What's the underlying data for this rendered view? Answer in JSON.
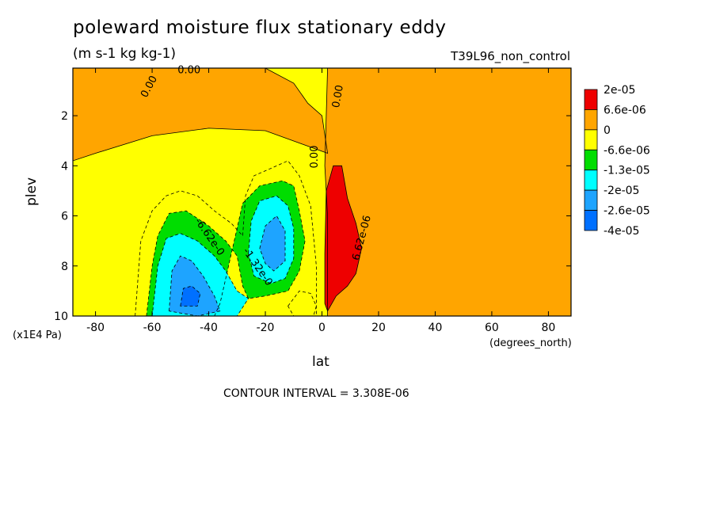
{
  "chart_data": {
    "type": "heatmap",
    "title": "poleward moisture flux stationary eddy",
    "subtitle": "(m s-1 kg kg-1)",
    "run_label": "T39L96_non_control",
    "xlabel": "lat",
    "xunit": "(degrees_north)",
    "ylabel": "plev",
    "yunit": "(x1E4 Pa)",
    "xlim": [
      -88,
      88
    ],
    "ylim": [
      10,
      0.1
    ],
    "x_ticks": [
      -80,
      -60,
      -40,
      -20,
      0,
      20,
      40,
      60,
      80
    ],
    "y_ticks": [
      2,
      4,
      6,
      8,
      10
    ],
    "contour_interval_text": "CONTOUR INTERVAL = 3.308E-06",
    "colorbar": {
      "labels": [
        "2e-05",
        "6.6e-06",
        "0",
        "-6.6e-06",
        "-1.3e-05",
        "-2e-05",
        "-2.6e-05",
        "-4e-05"
      ],
      "colors": [
        "#ee0000",
        "#ffa500",
        "#ffff00",
        "#00dd00",
        "#00ffff",
        "#1ea4ff",
        "#0070ff"
      ]
    },
    "contour_labels": [
      "0.00",
      "0.00",
      "0.00",
      "0.00",
      "-6.62e-0",
      "-1.32e-0",
      "6.62e-06"
    ],
    "regions": [
      {
        "name": "positive-nh-troposphere",
        "level": 0,
        "polygon": [
          [
            2,
            0.1
          ],
          [
            88,
            0.1
          ],
          [
            88,
            10
          ],
          [
            2,
            10
          ],
          [
            2,
            6
          ],
          [
            1,
            4
          ]
        ]
      },
      {
        "name": "positive-sh-stratosphere",
        "level": 0,
        "polygon": [
          [
            -88,
            0.1
          ],
          [
            -20,
            0.1
          ],
          [
            -10,
            0.7
          ],
          [
            -5,
            1.5
          ],
          [
            0,
            2
          ],
          [
            2,
            3.5
          ],
          [
            -20,
            2.6
          ],
          [
            -40,
            2.5
          ],
          [
            -60,
            2.8
          ],
          [
            -80,
            3.5
          ],
          [
            -88,
            3.8
          ]
        ]
      },
      {
        "name": "negative-south-ring1",
        "level": -1,
        "polygon": [
          [
            -66,
            10
          ],
          [
            -64,
            7
          ],
          [
            -60,
            5.8
          ],
          [
            -55,
            5.2
          ],
          [
            -50,
            5.0
          ],
          [
            -44,
            5.2
          ],
          [
            -38,
            5.8
          ],
          [
            -32,
            6.3
          ],
          [
            -28,
            6.8
          ],
          [
            -27,
            5.2
          ],
          [
            -24,
            4.4
          ],
          [
            -18,
            4.1
          ],
          [
            -12,
            3.8
          ],
          [
            -8,
            4.4
          ],
          [
            -4,
            5.6
          ],
          [
            -2,
            8
          ],
          [
            -2,
            10
          ]
        ]
      },
      {
        "name": "negative-south-ring2",
        "level": -2,
        "polygon": [
          [
            -62,
            10
          ],
          [
            -60,
            8
          ],
          [
            -58,
            6.8
          ],
          [
            -54,
            5.9
          ],
          [
            -48,
            5.8
          ],
          [
            -40,
            6.4
          ],
          [
            -34,
            7
          ],
          [
            -30,
            7.6
          ],
          [
            -28,
            8.8
          ],
          [
            -26,
            9.3
          ],
          [
            -20,
            9.2
          ],
          [
            -12,
            9.0
          ],
          [
            -8,
            8.2
          ],
          [
            -6,
            7
          ],
          [
            -8,
            5.8
          ],
          [
            -10,
            4.8
          ],
          [
            -14,
            4.6
          ],
          [
            -22,
            4.8
          ],
          [
            -28,
            5.5
          ],
          [
            -30,
            6.5
          ],
          [
            -32,
            7.5
          ],
          [
            -34,
            8.5
          ],
          [
            -36,
            9.5
          ],
          [
            -38,
            10
          ]
        ]
      },
      {
        "name": "negative-cyan-sh",
        "level": -3,
        "polygon": [
          [
            -60,
            10
          ],
          [
            -58,
            8
          ],
          [
            -55,
            6.9
          ],
          [
            -50,
            6.7
          ],
          [
            -44,
            7.0
          ],
          [
            -38,
            7.6
          ],
          [
            -34,
            8.2
          ],
          [
            -30,
            9.0
          ],
          [
            -26,
            9.3
          ],
          [
            -30,
            10
          ]
        ]
      },
      {
        "name": "negative-blue-sh",
        "level": -4,
        "polygon": [
          [
            -54,
            9.8
          ],
          [
            -53,
            8.2
          ],
          [
            -50,
            7.6
          ],
          [
            -46,
            7.8
          ],
          [
            -42,
            8.4
          ],
          [
            -38,
            9.2
          ],
          [
            -36,
            9.8
          ],
          [
            -44,
            10
          ]
        ]
      },
      {
        "name": "negative-dark-sh",
        "level": -5,
        "polygon": [
          [
            -50,
            9.6
          ],
          [
            -49,
            8.9
          ],
          [
            -46,
            8.8
          ],
          [
            -43,
            9.1
          ],
          [
            -44,
            9.6
          ]
        ]
      },
      {
        "name": "negative-cyan-sub",
        "level": -3,
        "polygon": [
          [
            -26,
            7.5
          ],
          [
            -25,
            6.2
          ],
          [
            -22,
            5.4
          ],
          [
            -16,
            5.2
          ],
          [
            -12,
            5.6
          ],
          [
            -10,
            6.5
          ],
          [
            -10,
            7.7
          ],
          [
            -13,
            8.5
          ],
          [
            -18,
            8.7
          ],
          [
            -24,
            8.4
          ]
        ]
      },
      {
        "name": "negative-blue-sub",
        "level": -4,
        "polygon": [
          [
            -22,
            7.3
          ],
          [
            -20,
            6.4
          ],
          [
            -16,
            6.0
          ],
          [
            -13,
            6.6
          ],
          [
            -13,
            7.8
          ],
          [
            -17,
            8.2
          ],
          [
            -20,
            7.9
          ]
        ]
      },
      {
        "name": "positive-red-tropics",
        "level": 1,
        "polygon": [
          [
            1,
            7.5
          ],
          [
            1.5,
            5
          ],
          [
            4,
            4.0
          ],
          [
            7,
            4.0
          ],
          [
            9,
            5.3
          ],
          [
            12,
            6.3
          ],
          [
            14,
            7.3
          ],
          [
            12,
            8.3
          ],
          [
            9,
            8.8
          ],
          [
            5,
            9.2
          ],
          [
            2,
            9.8
          ],
          [
            1,
            9.5
          ]
        ]
      },
      {
        "name": "negative-near-equator",
        "level": -1,
        "polygon": [
          [
            -12,
            9.6
          ],
          [
            -8,
            9.0
          ],
          [
            -4,
            9.1
          ],
          [
            -2,
            9.6
          ],
          [
            -3,
            10
          ],
          [
            -10,
            10
          ]
        ]
      }
    ]
  }
}
